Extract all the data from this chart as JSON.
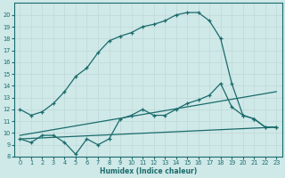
{
  "title": "",
  "xlabel": "Humidex (Indice chaleur)",
  "ylabel": "",
  "xlim": [
    -0.5,
    23.5
  ],
  "ylim": [
    8,
    21
  ],
  "yticks": [
    8,
    9,
    10,
    11,
    12,
    13,
    14,
    15,
    16,
    17,
    18,
    19,
    20
  ],
  "xticks": [
    0,
    1,
    2,
    3,
    4,
    5,
    6,
    7,
    8,
    9,
    10,
    11,
    12,
    13,
    14,
    15,
    16,
    17,
    18,
    19,
    20,
    21,
    22,
    23
  ],
  "bg_color": "#cfe8e8",
  "line_color": "#1a6b6b",
  "grid_color": "#c0d8d8",
  "series1": {
    "x": [
      0,
      1,
      2,
      3,
      4,
      5,
      6,
      7,
      8,
      9,
      10,
      11,
      12,
      13,
      14,
      15,
      16,
      17,
      18,
      19,
      20,
      21,
      22,
      23
    ],
    "y": [
      12.0,
      11.5,
      11.8,
      12.5,
      13.5,
      14.8,
      15.5,
      16.8,
      17.8,
      18.2,
      18.5,
      19.0,
      19.2,
      19.5,
      20.0,
      20.2,
      20.2,
      19.5,
      18.0,
      14.2,
      11.5,
      11.2,
      10.5,
      10.5
    ]
  },
  "series2": {
    "x": [
      0,
      1,
      2,
      3,
      4,
      5,
      6,
      7,
      8,
      9,
      10,
      11,
      12,
      13,
      14,
      15,
      16,
      17,
      18,
      19,
      20,
      21,
      22,
      23
    ],
    "y": [
      9.5,
      9.2,
      9.8,
      9.8,
      9.2,
      8.2,
      9.5,
      9.0,
      9.5,
      11.2,
      11.5,
      12.0,
      11.5,
      11.5,
      12.0,
      12.5,
      12.8,
      13.2,
      14.2,
      12.2,
      11.5,
      11.2,
      10.5,
      10.5
    ]
  },
  "series3": {
    "x": [
      0,
      23
    ],
    "y": [
      9.8,
      13.5
    ]
  },
  "series4": {
    "x": [
      0,
      23
    ],
    "y": [
      9.5,
      10.5
    ]
  }
}
